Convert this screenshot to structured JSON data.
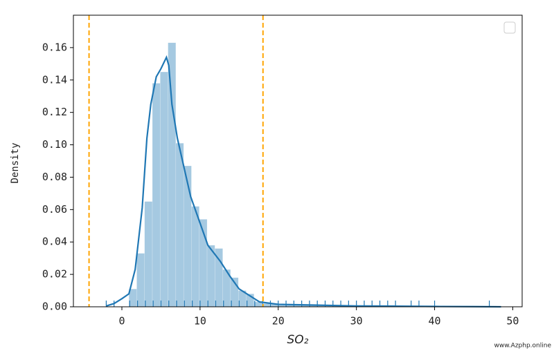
{
  "chart_data": {
    "type": "histogram",
    "xlabel": "SO₂",
    "ylabel": "Density",
    "watermark": "www.Azphp.online",
    "bins": [
      0.9,
      1.9,
      2.9,
      3.9,
      4.9,
      5.9,
      6.9,
      7.9,
      8.9,
      9.9,
      10.9,
      11.9,
      12.9,
      13.9,
      14.9,
      15.9,
      16.9,
      17.9,
      18.9,
      19.9,
      20.9,
      21.9,
      22.9,
      23.9,
      24.9,
      25.9,
      26.9,
      27.9,
      28.9,
      29.9,
      30.9,
      31.9,
      32.9,
      33.9,
      34.9,
      35.9,
      36.9,
      37.9,
      38.9,
      39.9,
      40.9,
      41.9,
      42.9,
      43.9,
      44.9,
      45.9,
      46.9,
      47.9
    ],
    "values": [
      0.011,
      0.033,
      0.065,
      0.138,
      0.145,
      0.163,
      0.101,
      0.087,
      0.062,
      0.054,
      0.038,
      0.036,
      0.023,
      0.018,
      0.01,
      0.008,
      0.003,
      0.002,
      0.002,
      0.001,
      0.001,
      0.001,
      0.001,
      0.001,
      0.001,
      0.001,
      0.001,
      0.001,
      0.001,
      0.001,
      0.001,
      0.001,
      0.001,
      0.001,
      0.0005,
      0.0005,
      0.0005,
      0,
      0.0005,
      0,
      0,
      0,
      0,
      0,
      0,
      0,
      0.0005
    ],
    "color": "#1f77b4",
    "hist_alpha": 0.4,
    "kde": {
      "x": [
        -2,
        -1,
        0,
        0.9,
        1.7,
        2.6,
        3.2,
        3.7,
        4.4,
        5.0,
        5.7,
        6.0,
        6.4,
        7.1,
        7.9,
        8.8,
        9.9,
        11,
        12.6,
        13.8,
        15,
        16.3,
        17.6,
        20,
        25,
        30,
        35,
        40,
        45,
        48.5
      ],
      "y": [
        0.0005,
        0.002,
        0.005,
        0.008,
        0.023,
        0.061,
        0.104,
        0.125,
        0.142,
        0.147,
        0.154,
        0.149,
        0.125,
        0.104,
        0.087,
        0.068,
        0.053,
        0.038,
        0.028,
        0.019,
        0.011,
        0.007,
        0.003,
        0.0015,
        0.001,
        0.0005,
        0.0004,
        0.0002,
        0.0001,
        0
      ]
    },
    "rug": [
      -2,
      -1,
      1,
      2,
      3,
      4,
      5,
      6,
      7,
      8,
      9,
      10,
      11,
      12,
      13,
      14,
      15,
      16,
      17,
      18,
      19,
      20,
      21,
      22,
      23,
      24,
      25,
      26,
      27,
      28,
      29,
      30,
      31,
      32,
      33,
      34,
      35,
      37,
      38,
      40,
      47
    ],
    "vlines": [
      -4.2,
      18.05
    ],
    "vline_color": "#ffa500",
    "xlim": [
      -6.2,
      51.2
    ],
    "ylim": [
      0,
      0.18
    ],
    "xticks": [
      0,
      10,
      20,
      30,
      40,
      50
    ],
    "yticks": [
      {
        "value": 0,
        "label": "0.00"
      },
      {
        "value": 0.02,
        "label": "0.02"
      },
      {
        "value": 0.04,
        "label": "0.04"
      },
      {
        "value": 0.06,
        "label": "0.06"
      },
      {
        "value": 0.08,
        "label": "0.08"
      },
      {
        "value": 0.1,
        "label": "0.10"
      },
      {
        "value": 0.12,
        "label": "0.12"
      },
      {
        "value": 0.14,
        "label": "0.14"
      },
      {
        "value": 0.16,
        "label": "0.16"
      }
    ],
    "legend": "upper right"
  }
}
